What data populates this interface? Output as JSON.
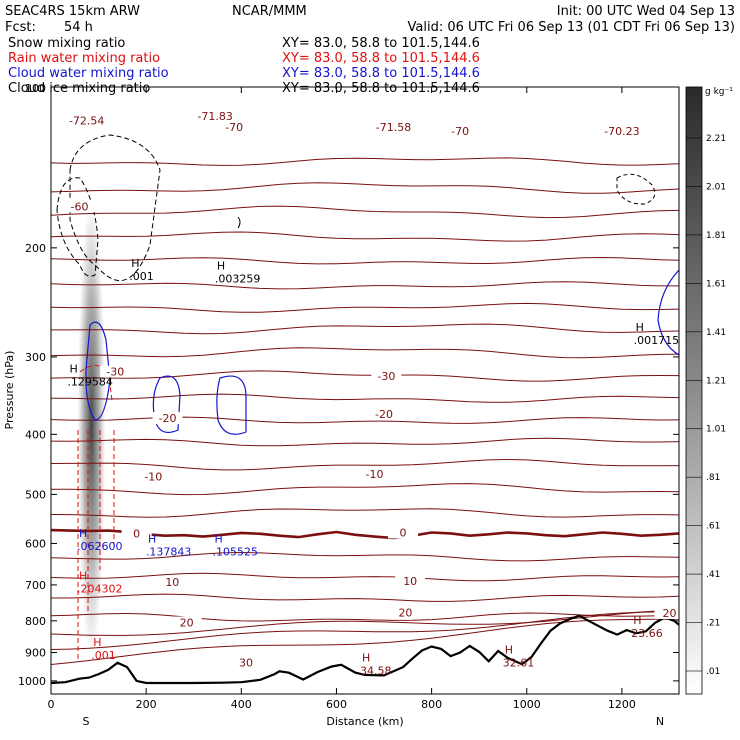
{
  "header": {
    "model": "SEAC4RS 15km ARW",
    "org": "NCAR/MMM",
    "init": "Init: 00 UTC Wed 04 Sep 13",
    "fcst_label": "Fcst:",
    "fcst_value": "54 h",
    "valid": "Valid: 06 UTC Fri 06 Sep 13 (01 CDT Fri 06 Sep 13)"
  },
  "fields": [
    {
      "name": "Snow mixing ratio",
      "xy": "XY=  83.0, 58.8 to 101.5,144.6",
      "color": "#000000"
    },
    {
      "name": "Rain water mixing ratio",
      "xy": "XY=  83.0, 58.8 to 101.5,144.6",
      "color": "#e01010"
    },
    {
      "name": "Cloud water mixing ratio",
      "xy": "XY=  83.0, 58.8 to 101.5,144.6",
      "color": "#1414d0"
    },
    {
      "name": "Cloud ice mixing ratio",
      "xy": "XY=  83.0, 58.8 to 101.5,144.6",
      "color": "#000000"
    }
  ],
  "colors": {
    "temperature": "#7a1010",
    "rain": "#e01010",
    "cloud_water": "#1414d0",
    "terrain": "#000000"
  },
  "chart_data": {
    "type": "cross-section contour",
    "xlabel": "Distance (km)",
    "ylabel": "Pressure (hPa)",
    "xlim": [
      0,
      1320
    ],
    "ylim": [
      1050,
      110
    ],
    "y_scale": "log-pressure",
    "x_ticks": [
      "0",
      "200",
      "400",
      "600",
      "800",
      "1000",
      "1200"
    ],
    "x_tick_values": [
      0,
      200,
      400,
      600,
      800,
      1000,
      1200
    ],
    "y_ticks": [
      "200",
      "300",
      "400",
      "500",
      "600",
      "700",
      "800",
      "900",
      "1000"
    ],
    "y_tick_values": [
      200,
      300,
      400,
      500,
      600,
      700,
      800,
      900,
      1000
    ],
    "top_tick_label": "100",
    "left_end": "S",
    "right_end": "N",
    "colorbar": {
      "unit": "g kg⁻¹",
      "labels": [
        "2.21",
        "2.01",
        "1.81",
        "1.61",
        "1.41",
        "1.21",
        "1.01",
        ".81",
        ".61",
        ".41",
        ".21",
        ".01"
      ],
      "values": [
        2.21,
        2.01,
        1.81,
        1.61,
        1.41,
        1.21,
        1.01,
        0.81,
        0.61,
        0.41,
        0.21,
        0.01
      ]
    },
    "isotherm_labels": [
      {
        "text": "-72.54",
        "x": 75,
        "p": 125
      },
      {
        "text": "-71.83",
        "x": 345,
        "p": 123
      },
      {
        "text": "-70",
        "x": 385,
        "p": 128
      },
      {
        "text": "-71.58",
        "x": 720,
        "p": 128
      },
      {
        "text": "-70",
        "x": 860,
        "p": 130
      },
      {
        "text": "-70.23",
        "x": 1200,
        "p": 130
      },
      {
        "text": "-60",
        "x": 60,
        "p": 172
      },
      {
        "text": "-30",
        "x": 135,
        "p": 318
      },
      {
        "text": "-30",
        "x": 705,
        "p": 323
      },
      {
        "text": "-20",
        "x": 245,
        "p": 378
      },
      {
        "text": "-20",
        "x": 700,
        "p": 372
      },
      {
        "text": "-10",
        "x": 215,
        "p": 470
      },
      {
        "text": "-10",
        "x": 680,
        "p": 465
      },
      {
        "text": "0",
        "x": 180,
        "p": 580
      },
      {
        "text": "0",
        "x": 740,
        "p": 578
      },
      {
        "text": "10",
        "x": 255,
        "p": 695
      },
      {
        "text": "10",
        "x": 755,
        "p": 692
      },
      {
        "text": "20",
        "x": 285,
        "p": 808
      },
      {
        "text": "20",
        "x": 745,
        "p": 778
      },
      {
        "text": "20",
        "x": 1300,
        "p": 780
      },
      {
        "text": "30",
        "x": 410,
        "p": 938
      }
    ],
    "maxima": [
      {
        "text": ".001",
        "x": 215,
        "p": 223,
        "color": "#000000"
      },
      {
        "text": ".003259",
        "x": 395,
        "p": 225,
        "color": "#000000"
      },
      {
        "text": ".001715",
        "x": 1275,
        "p": 283,
        "color": "#000000"
      },
      {
        "text": ".129584",
        "x": 85,
        "p": 330,
        "color": "#000000"
      },
      {
        "text": ".062600",
        "x": 105,
        "p": 608,
        "color": "#1414d0"
      },
      {
        "text": ".137843",
        "x": 250,
        "p": 620,
        "color": "#1414d0"
      },
      {
        "text": ".105525",
        "x": 390,
        "p": 620,
        "color": "#1414d0"
      },
      {
        "text": ".204302",
        "x": 105,
        "p": 712,
        "color": "#e01010"
      },
      {
        "text": ".001",
        "x": 135,
        "p": 912,
        "color": "#e01010"
      },
      {
        "text": "34.58",
        "x": 700,
        "p": 965,
        "color": "#7a1010"
      },
      {
        "text": "32.61",
        "x": 1000,
        "p": 938,
        "color": "#7a1010"
      },
      {
        "text": "23.66",
        "x": 1270,
        "p": 840,
        "color": "#7a1010"
      }
    ],
    "terrain": {
      "x": [
        0,
        30,
        60,
        80,
        100,
        120,
        140,
        160,
        180,
        200,
        240,
        300,
        360,
        400,
        440,
        470,
        480,
        500,
        530,
        560,
        590,
        610,
        640,
        660,
        700,
        740,
        760,
        780,
        800,
        820,
        840,
        860,
        880,
        900,
        920,
        940,
        960,
        990,
        1010,
        1030,
        1050,
        1070,
        1090,
        1110,
        1130,
        1150,
        1170,
        1190,
        1210,
        1230,
        1250,
        1270,
        1290,
        1310,
        1320
      ],
      "p": [
        1008,
        1005,
        992,
        988,
        975,
        960,
        935,
        950,
        1000,
        1008,
        1008,
        1008,
        1007,
        1005,
        996,
        975,
        965,
        970,
        995,
        968,
        948,
        942,
        970,
        978,
        980,
        950,
        920,
        893,
        880,
        888,
        912,
        900,
        878,
        898,
        930,
        895,
        918,
        940,
        915,
        870,
        830,
        808,
        795,
        785,
        800,
        815,
        830,
        842,
        828,
        838,
        832,
        806,
        790,
        800,
        812
      ]
    },
    "zero_isotherm": {
      "x": [
        0,
        40,
        80,
        120,
        160,
        200,
        240,
        280,
        320,
        360,
        400,
        440,
        480,
        520,
        560,
        600,
        640,
        680,
        720,
        760,
        800,
        840,
        880,
        920,
        960,
        1000,
        1040,
        1080,
        1120,
        1160,
        1200,
        1240,
        1280,
        1320
      ],
      "p": [
        571,
        572,
        573,
        572,
        575,
        580,
        583,
        582,
        585,
        581,
        577,
        579,
        583,
        586,
        580,
        575,
        581,
        585,
        588,
        583,
        576,
        578,
        583,
        580,
        576,
        578,
        582,
        584,
        580,
        576,
        579,
        583,
        581,
        578
      ]
    },
    "isobaric_isotherms_p": [
      145,
      160,
      175,
      192,
      210,
      230,
      250,
      270,
      295,
      322,
      350,
      380,
      412,
      448,
      490,
      535,
      630,
      680,
      735,
      790
    ]
  }
}
